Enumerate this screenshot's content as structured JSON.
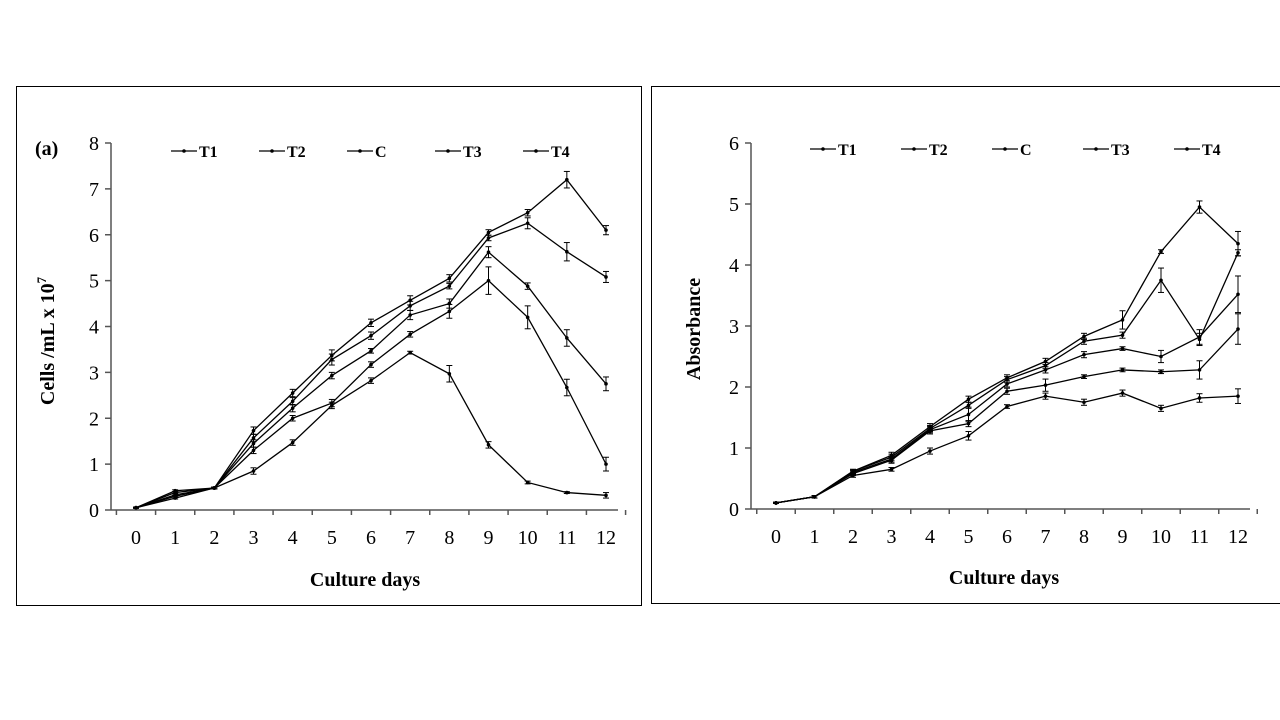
{
  "chart_data": [
    {
      "type": "line",
      "panel_label": "(a)",
      "title": "",
      "xlabel": "Culture days",
      "ylabel_main": "Cells /mL x 10",
      "ylabel_sup": "7",
      "x": [
        0,
        1,
        2,
        3,
        4,
        5,
        6,
        7,
        8,
        9,
        10,
        11,
        12
      ],
      "ylim": [
        0,
        8
      ],
      "yticks": [
        0,
        1,
        2,
        3,
        4,
        5,
        6,
        7,
        8
      ],
      "grid": false,
      "legend_position": "top",
      "series": [
        {
          "name": "T1",
          "values": [
            0.05,
            0.42,
            0.48,
            0.85,
            1.47,
            2.28,
            2.82,
            3.43,
            2.97,
            1.42,
            0.6,
            0.38,
            0.32
          ],
          "errors": [
            0.01,
            0.02,
            0.02,
            0.07,
            0.06,
            0.07,
            0.06,
            0.03,
            0.18,
            0.07,
            0.03,
            0.02,
            0.06
          ]
        },
        {
          "name": "T2",
          "values": [
            0.05,
            0.38,
            0.48,
            1.3,
            2.0,
            2.33,
            3.17,
            3.83,
            4.33,
            5.0,
            4.2,
            2.67,
            1.0
          ],
          "errors": [
            0.01,
            0.02,
            0.02,
            0.07,
            0.06,
            0.08,
            0.06,
            0.06,
            0.15,
            0.3,
            0.25,
            0.18,
            0.15
          ]
        },
        {
          "name": "C",
          "values": [
            0.05,
            0.33,
            0.48,
            1.45,
            2.22,
            2.93,
            3.47,
            4.25,
            4.5,
            5.62,
            4.88,
            3.75,
            2.75
          ],
          "errors": [
            0.01,
            0.02,
            0.02,
            0.08,
            0.08,
            0.07,
            0.05,
            0.1,
            0.1,
            0.12,
            0.07,
            0.18,
            0.15
          ]
        },
        {
          "name": "T3",
          "values": [
            0.05,
            0.3,
            0.48,
            1.57,
            2.37,
            3.28,
            3.8,
            4.45,
            4.88,
            5.93,
            6.25,
            5.63,
            5.08
          ],
          "errors": [
            0.01,
            0.02,
            0.02,
            0.08,
            0.08,
            0.12,
            0.08,
            0.1,
            0.06,
            0.06,
            0.12,
            0.2,
            0.12
          ]
        },
        {
          "name": "T4",
          "values": [
            0.05,
            0.26,
            0.48,
            1.73,
            2.55,
            3.37,
            4.08,
            4.57,
            5.05,
            6.05,
            6.48,
            7.2,
            6.1
          ],
          "errors": [
            0.01,
            0.02,
            0.02,
            0.08,
            0.08,
            0.12,
            0.08,
            0.1,
            0.08,
            0.06,
            0.07,
            0.18,
            0.1
          ]
        }
      ]
    },
    {
      "type": "line",
      "title": "",
      "xlabel": "Culture days",
      "ylabel": "Absorbance",
      "x": [
        0,
        1,
        2,
        3,
        4,
        5,
        6,
        7,
        8,
        9,
        10,
        11,
        12
      ],
      "ylim": [
        0,
        6
      ],
      "yticks": [
        0,
        1,
        2,
        3,
        4,
        5,
        6
      ],
      "grid": false,
      "legend_position": "top",
      "series": [
        {
          "name": "T1",
          "values": [
            0.1,
            0.2,
            0.55,
            0.65,
            0.95,
            1.2,
            1.68,
            1.85,
            1.75,
            1.9,
            1.65,
            1.82,
            1.85
          ],
          "errors": [
            0.01,
            0.02,
            0.03,
            0.03,
            0.05,
            0.07,
            0.03,
            0.05,
            0.05,
            0.05,
            0.05,
            0.07,
            0.12
          ]
        },
        {
          "name": "T2",
          "values": [
            0.1,
            0.2,
            0.58,
            0.8,
            1.28,
            1.4,
            1.93,
            2.03,
            2.17,
            2.28,
            2.25,
            2.28,
            2.95
          ],
          "errors": [
            0.01,
            0.02,
            0.03,
            0.05,
            0.05,
            0.05,
            0.05,
            0.1,
            0.03,
            0.03,
            0.03,
            0.15,
            0.25
          ]
        },
        {
          "name": "C",
          "values": [
            0.1,
            0.2,
            0.6,
            0.82,
            1.3,
            1.55,
            2.05,
            2.28,
            2.53,
            2.63,
            2.5,
            2.82,
            3.52
          ],
          "errors": [
            0.01,
            0.02,
            0.03,
            0.05,
            0.05,
            0.12,
            0.05,
            0.05,
            0.05,
            0.03,
            0.1,
            0.12,
            0.3
          ]
        },
        {
          "name": "T3",
          "values": [
            0.1,
            0.2,
            0.62,
            0.85,
            1.32,
            1.7,
            2.12,
            2.35,
            2.75,
            2.85,
            3.75,
            2.78,
            4.2
          ],
          "errors": [
            0.01,
            0.02,
            0.03,
            0.05,
            0.05,
            0.05,
            0.05,
            0.05,
            0.05,
            0.05,
            0.2,
            0.1,
            0.05
          ]
        },
        {
          "name": "T4",
          "values": [
            0.1,
            0.2,
            0.62,
            0.88,
            1.35,
            1.8,
            2.15,
            2.42,
            2.83,
            3.1,
            4.22,
            4.95,
            4.35
          ],
          "errors": [
            0.01,
            0.02,
            0.03,
            0.05,
            0.05,
            0.05,
            0.05,
            0.05,
            0.05,
            0.15,
            0.03,
            0.1,
            0.2
          ]
        }
      ]
    }
  ]
}
